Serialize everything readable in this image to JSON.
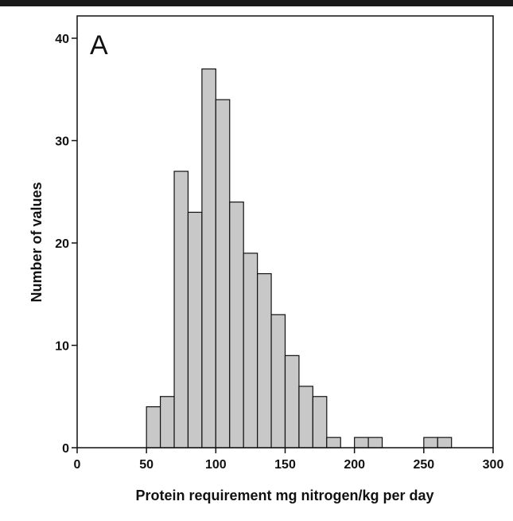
{
  "chart_data": {
    "type": "bar",
    "panel_label": "A",
    "xlabel": "Protein requirement mg nitrogen/kg per day",
    "ylabel": "Number of values",
    "xlim": [
      0,
      300
    ],
    "ylim": [
      0,
      40
    ],
    "bin_width": 10,
    "x_ticks": [
      0,
      50,
      100,
      150,
      200,
      250,
      300
    ],
    "y_ticks": [
      0,
      10,
      20,
      30,
      40
    ],
    "bar_color": "#c8c8c8",
    "bins": [
      {
        "start": 50,
        "value": 4
      },
      {
        "start": 60,
        "value": 5
      },
      {
        "start": 70,
        "value": 27
      },
      {
        "start": 80,
        "value": 23
      },
      {
        "start": 90,
        "value": 37
      },
      {
        "start": 100,
        "value": 34
      },
      {
        "start": 110,
        "value": 24
      },
      {
        "start": 120,
        "value": 19
      },
      {
        "start": 130,
        "value": 17
      },
      {
        "start": 140,
        "value": 13
      },
      {
        "start": 150,
        "value": 9
      },
      {
        "start": 160,
        "value": 6
      },
      {
        "start": 170,
        "value": 5
      },
      {
        "start": 180,
        "value": 1
      },
      {
        "start": 200,
        "value": 1
      },
      {
        "start": 210,
        "value": 1
      },
      {
        "start": 250,
        "value": 1
      },
      {
        "start": 260,
        "value": 1
      }
    ]
  }
}
